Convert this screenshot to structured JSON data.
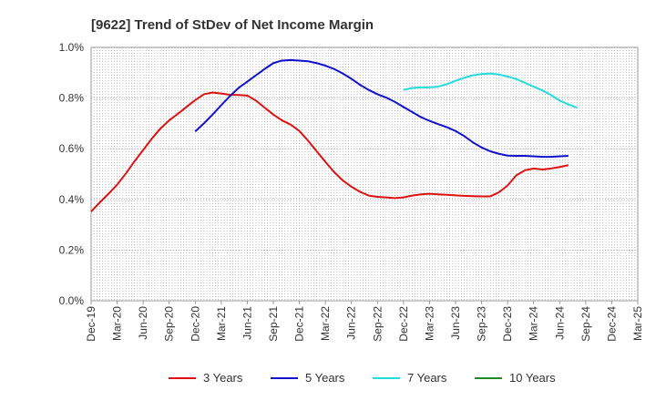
{
  "chart_data": {
    "type": "line",
    "title": "[9622]  Trend of StDev of Net Income Margin",
    "xlabel": "",
    "ylabel": "",
    "ylim": [
      0,
      1.0
    ],
    "y_ticks": [
      "0.0%",
      "0.2%",
      "0.4%",
      "0.6%",
      "0.8%",
      "1.0%"
    ],
    "x_ticks": [
      "Dec-19",
      "Mar-20",
      "Jun-20",
      "Sep-20",
      "Dec-20",
      "Mar-21",
      "Jun-21",
      "Sep-21",
      "Dec-21",
      "Mar-22",
      "Jun-22",
      "Sep-22",
      "Dec-22",
      "Mar-23",
      "Jun-23",
      "Sep-23",
      "Dec-23",
      "Mar-24",
      "Jun-24",
      "Sep-24",
      "Dec-24",
      "Mar-25"
    ],
    "grid": true,
    "legend_position": "bottom",
    "series": [
      {
        "name": "3 Years",
        "color": "#dd1111",
        "start_index": 0,
        "values": [
          0.352,
          0.388,
          0.422,
          0.458,
          0.502,
          0.55,
          0.595,
          0.64,
          0.68,
          0.712,
          0.738,
          0.765,
          0.792,
          0.815,
          0.822,
          0.818,
          0.813,
          0.812,
          0.81,
          0.79,
          0.762,
          0.735,
          0.712,
          0.695,
          0.67,
          0.632,
          0.59,
          0.548,
          0.508,
          0.475,
          0.45,
          0.43,
          0.415,
          0.41,
          0.408,
          0.405,
          0.408,
          0.415,
          0.42,
          0.422,
          0.42,
          0.418,
          0.416,
          0.414,
          0.413,
          0.412,
          0.412,
          0.428,
          0.455,
          0.495,
          0.515,
          0.522,
          0.518,
          0.522,
          0.528,
          0.535
        ]
      },
      {
        "name": "5 Years",
        "color": "#1111cc",
        "start_index": 12,
        "values": [
          0.668,
          0.7,
          0.735,
          0.772,
          0.808,
          0.84,
          0.865,
          0.89,
          0.915,
          0.938,
          0.948,
          0.95,
          0.948,
          0.945,
          0.938,
          0.928,
          0.915,
          0.897,
          0.876,
          0.852,
          0.832,
          0.815,
          0.802,
          0.785,
          0.765,
          0.745,
          0.725,
          0.71,
          0.697,
          0.685,
          0.67,
          0.65,
          0.625,
          0.605,
          0.59,
          0.58,
          0.573,
          0.572,
          0.572,
          0.57,
          0.568,
          0.568,
          0.57,
          0.572
        ]
      },
      {
        "name": "7 Years",
        "color": "#22dddd",
        "start_index": 36,
        "values": [
          0.832,
          0.84,
          0.842,
          0.842,
          0.845,
          0.855,
          0.868,
          0.88,
          0.89,
          0.895,
          0.897,
          0.893,
          0.885,
          0.875,
          0.86,
          0.845,
          0.83,
          0.812,
          0.79,
          0.775,
          0.762
        ]
      },
      {
        "name": "10 Years",
        "color": "#228822",
        "start_index": 0,
        "values": []
      }
    ]
  }
}
